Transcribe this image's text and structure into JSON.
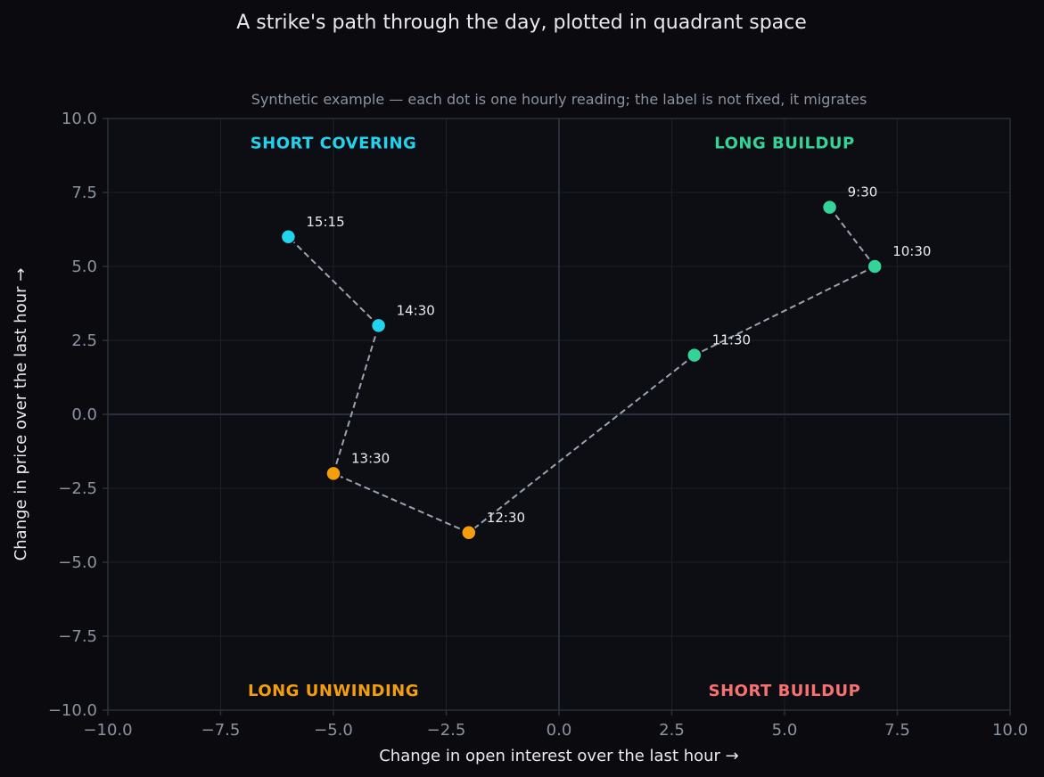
{
  "chart_data": {
    "type": "scatter",
    "title": "A strike's path through the day, plotted in quadrant space",
    "subtitle": "Synthetic example — each dot is one hourly reading; the label is not fixed, it migrates",
    "xlabel": "Change in open interest over the last hour  →",
    "ylabel": "Change in price over the last hour  →",
    "xlim": [
      -10,
      10
    ],
    "ylim": [
      -10,
      10
    ],
    "xticks": [
      -10,
      -7.5,
      -5,
      -2.5,
      0,
      2.5,
      5,
      7.5,
      10
    ],
    "yticks": [
      -10,
      -7.5,
      -5,
      -2.5,
      0,
      2.5,
      5,
      7.5,
      10
    ],
    "xtick_labels": [
      "−10.0",
      "−7.5",
      "−5.0",
      "−2.5",
      "0.0",
      "2.5",
      "5.0",
      "7.5",
      "10.0"
    ],
    "ytick_labels": [
      "−10.0",
      "−7.5",
      "−5.0",
      "−2.5",
      "0.0",
      "2.5",
      "5.0",
      "7.5",
      "10.0"
    ],
    "grid": true,
    "path_line": "dashed",
    "quadrants": [
      {
        "label": "SHORT COVERING",
        "x": -5,
        "y": 9.2,
        "color": "#22d3ee"
      },
      {
        "label": "LONG BUILDUP",
        "x": 5,
        "y": 9.2,
        "color": "#34d399"
      },
      {
        "label": "LONG UNWINDING",
        "x": -5,
        "y": -9.3,
        "color": "#f59e0b"
      },
      {
        "label": "SHORT BUILDUP",
        "x": 5,
        "y": -9.3,
        "color": "#f87171"
      }
    ],
    "points": [
      {
        "label": "9:30",
        "x": 6,
        "y": 7,
        "color": "#34d399"
      },
      {
        "label": "10:30",
        "x": 7,
        "y": 5,
        "color": "#34d399"
      },
      {
        "label": "11:30",
        "x": 3,
        "y": 2,
        "color": "#34d399"
      },
      {
        "label": "12:30",
        "x": -2,
        "y": -4,
        "color": "#f59e0b"
      },
      {
        "label": "13:30",
        "x": -5,
        "y": -2,
        "color": "#f59e0b"
      },
      {
        "label": "14:30",
        "x": -4,
        "y": 3,
        "color": "#22d3ee"
      },
      {
        "label": "15:15",
        "x": -6,
        "y": 6,
        "color": "#22d3ee"
      }
    ],
    "colors": {
      "background": "#0b0b0f",
      "plot_background": "#0d0e13",
      "grid": "#1c2028",
      "zero_line": "#2a303b",
      "path": "#9aa3b2",
      "axis": "#2a303b"
    }
  }
}
